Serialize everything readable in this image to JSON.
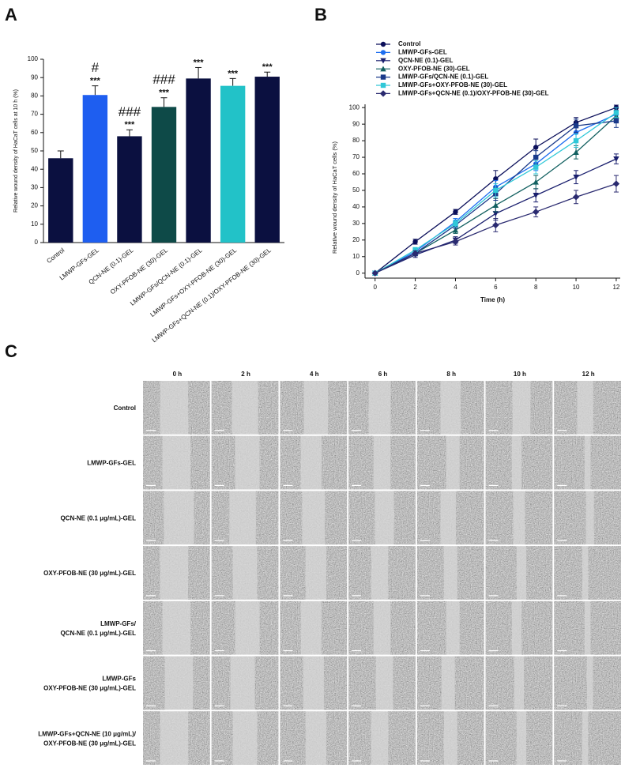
{
  "panel_labels": [
    "A",
    "B",
    "C"
  ],
  "chart_data": [
    {
      "type": "bar",
      "ylabel": "Relative wound density of HaCaT cells at 10 h (%)",
      "categories": [
        "Control",
        "LMWP-GFs-GEL",
        "QCN-NE (0.1)-GEL",
        "OXY-PFOB-NE (30)-GEL",
        "LMWP-GFs/QCN-NE (0.1)-GEL",
        "LMWP-GFs+OXY-PFOB-NE (30)-GEL",
        "LMWP-GFs+QCN-NE (0.1)/OXY-PFOB-NE (30)-GEL"
      ],
      "values": [
        46,
        80.5,
        58,
        74,
        89.5,
        85.5,
        90.5
      ],
      "errors": [
        4,
        5,
        3.5,
        5,
        6,
        4,
        2.5
      ],
      "colors": [
        "#0b1040",
        "#1e5ef0",
        "#0b1040",
        "#0e4a48",
        "#0b1040",
        "#22c2c8",
        "#0b1040"
      ],
      "value_annotations": [
        null,
        "***",
        "***",
        "***",
        "***",
        "***",
        "***"
      ],
      "hash_annotations": [
        null,
        "#",
        "###",
        "###",
        null,
        null,
        null
      ],
      "ylim": [
        0,
        100
      ],
      "yticks": [
        0,
        10,
        20,
        30,
        40,
        50,
        60,
        70,
        80,
        90,
        100
      ]
    },
    {
      "type": "line",
      "xlabel": "Time (h)",
      "ylabel": "Relative wound density of HaCaT cells (%)",
      "x": [
        0,
        2,
        4,
        6,
        8,
        10,
        12
      ],
      "xlim": [
        -0.5,
        12.2
      ],
      "xticks": [
        0,
        2,
        4,
        6,
        8,
        10,
        12
      ],
      "ylim": [
        -3,
        102
      ],
      "yticks": [
        0,
        10,
        20,
        30,
        40,
        50,
        60,
        70,
        80,
        90,
        100
      ],
      "series": [
        {
          "name": "Control",
          "color": "#0b0f5a",
          "marker": "circle",
          "values": [
            0,
            19,
            37,
            57,
            76,
            91,
            100
          ],
          "errors": [
            0,
            1.5,
            1.5,
            5,
            5,
            3,
            1.5
          ]
        },
        {
          "name": "LMWP-GFs-GEL",
          "color": "#1e6ef0",
          "marker": "circle",
          "values": [
            0,
            13,
            31,
            52,
            66,
            85,
            96
          ],
          "errors": [
            0,
            1.5,
            2,
            4,
            4,
            4,
            2
          ]
        },
        {
          "name": "QCN-NE (0.1)-GEL",
          "color": "#1a1f6e",
          "marker": "triangle-down",
          "values": [
            0,
            11,
            20,
            36,
            47,
            58,
            69
          ],
          "errors": [
            0,
            1.5,
            2,
            4,
            4,
            4,
            3
          ]
        },
        {
          "name": "OXY-PFOB-NE (30)-GEL",
          "color": "#126060",
          "marker": "triangle-up",
          "values": [
            0,
            12,
            26,
            41,
            55,
            73,
            95
          ],
          "errors": [
            0,
            1.5,
            2,
            4,
            4,
            4,
            3
          ]
        },
        {
          "name": "LMWP-GFs/QCN-NE (0.1)-GEL",
          "color": "#1a3a8a",
          "marker": "square",
          "values": [
            0,
            12,
            29,
            48,
            70,
            89,
            92
          ],
          "errors": [
            0,
            1.5,
            2,
            4,
            4,
            4,
            4
          ]
        },
        {
          "name": "LMWP-GFs+OXY-PFOB-NE (30)-GEL",
          "color": "#30c8d8",
          "marker": "square",
          "values": [
            0,
            14,
            30,
            50,
            64,
            80,
            97
          ],
          "errors": [
            0,
            1.5,
            2,
            4,
            4,
            4,
            3
          ]
        },
        {
          "name": "LMWP-GFs+QCN-NE (0.1)/OXY-PFOB-NE (30)-GEL",
          "color": "#2a2a70",
          "marker": "diamond",
          "values": [
            0,
            12,
            19,
            29,
            37,
            46,
            54
          ],
          "errors": [
            0,
            1.5,
            2,
            4,
            3,
            4,
            5
          ]
        }
      ]
    }
  ],
  "panel_c": {
    "time_points": [
      "0 h",
      "2 h",
      "4 h",
      "6 h",
      "8 h",
      "10 h",
      "12 h"
    ],
    "row_labels": [
      [
        "Control"
      ],
      [
        "LMWP-GFs-GEL"
      ],
      [
        "QCN-NE (0.1 μg/mL)-GEL"
      ],
      [
        "OXY-PFOB-NE (30 μg/mL)-GEL"
      ],
      [
        "LMWP-GFs/",
        "QCN-NE (0.1 μg/mL)-GEL"
      ],
      [
        "LMWP-GFs",
        "OXY-PFOB-NE (30 μg/mL)-GEL"
      ],
      [
        "LMWP-GFs+QCN-NE (10 μg/mL)/",
        "OXY-PFOB-NE (30 μg/mL)-GEL"
      ]
    ]
  }
}
